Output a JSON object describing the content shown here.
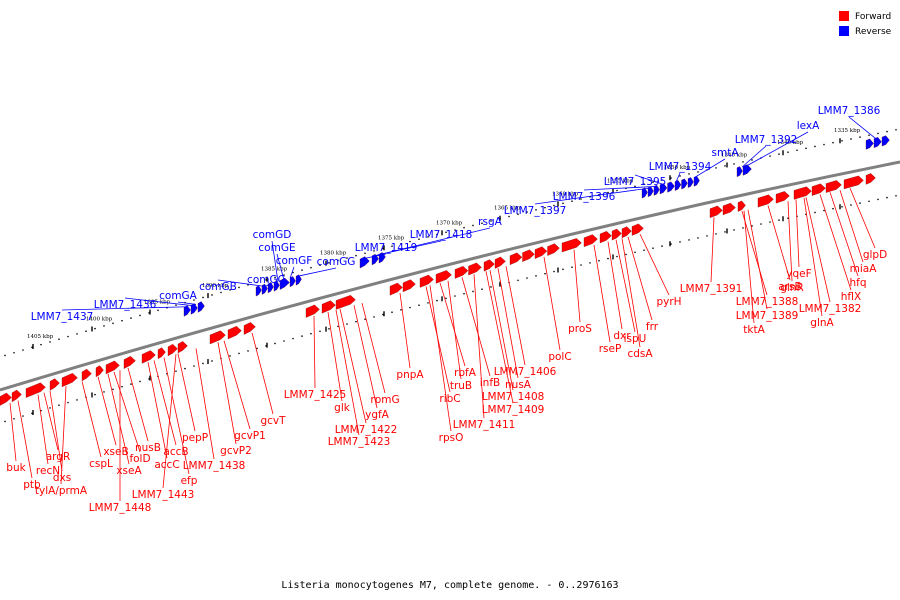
{
  "caption": "Listeria monocytogenes M7, complete genome. - 0..2976163",
  "legend": [
    {
      "label": "Forward",
      "color": "#ff0000"
    },
    {
      "label": "Reverse",
      "color": "#0000ff"
    }
  ],
  "colors": {
    "forward": "#ff0000",
    "reverse": "#0000ff",
    "backbone": "#808080"
  },
  "ticks": [
    "1405 kbp",
    "1400 kbp",
    "1395 kbp",
    "1390 kbp",
    "1385 kbp",
    "1380 kbp",
    "1375 kbp",
    "1370 kbp",
    "1365 kbp",
    "1360 kbp",
    "1355 kbp",
    "1350 kbp",
    "1345 kbp",
    "1340 kbp",
    "1335 kbp"
  ],
  "reverse_labels": [
    "LMM7_1437",
    "LMM7_1436",
    "comGA",
    "comGB",
    "comGC",
    "comGD",
    "comGE",
    "comGF",
    "comGG",
    "LMM7_1419",
    "LMM7_1418",
    "rsgA",
    "LMM7_1397",
    "LMM7_1396",
    "LMM7_1395",
    "LMM7_1394",
    "smtA",
    "LMM7_1392",
    "lexA",
    "LMM7_1386"
  ],
  "forward_labels": [
    "buk",
    "ptb",
    "recN",
    "argR",
    "dxs",
    "tylA/prmA",
    "cspL",
    "xseB",
    "xseA",
    "folD",
    "LMM7_1448",
    "nusB",
    "accC",
    "accB",
    "efp",
    "LMM7_1443",
    "pepP",
    "LMM7_1438",
    "gcvP1",
    "gcvP2",
    "gcvT",
    "LMM7_1425",
    "glk",
    "LMM7_1422",
    "LMM7_1423",
    "ygfA",
    "rpmG",
    "pnpA",
    "ribC",
    "rpsO",
    "rbfA",
    "truB",
    "infB",
    "LMM7_1411",
    "LMM7_1409",
    "LMM7_1408",
    "nusA",
    "LMM7_1406",
    "polC",
    "proS",
    "rseP",
    "dxr",
    "ispU",
    "cdsA",
    "frr",
    "pyrH",
    "LMM7_1391",
    "LMM7_1388",
    "LMM7_1389",
    "tktA",
    "arsB",
    "glnR",
    "yqeF",
    "glnA",
    "LMM7_1382",
    "hflX",
    "hfq",
    "miaA",
    "glpD"
  ]
}
